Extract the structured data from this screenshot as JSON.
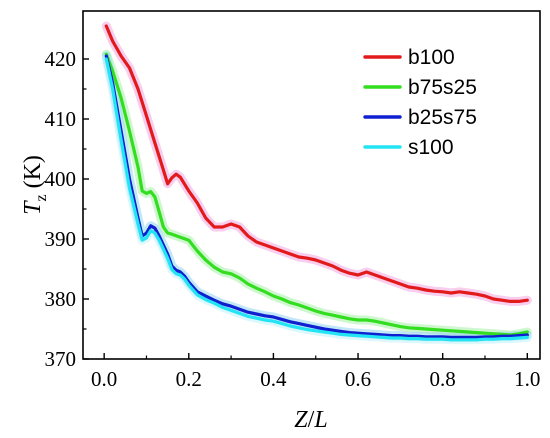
{
  "chart_data": {
    "type": "line",
    "xlabel": {
      "main": "Z",
      "slash": "/",
      "sub": "L"
    },
    "ylabel": {
      "main": "T",
      "sub": "z",
      "unit": " (K)"
    },
    "xlim": [
      -0.05,
      1.03
    ],
    "ylim": [
      370,
      428
    ],
    "xticks": [
      0.0,
      0.2,
      0.4,
      0.6,
      0.8,
      1.0
    ],
    "xtick_labels": [
      "0.0",
      "0.2",
      "0.4",
      "0.6",
      "0.8",
      "1.0"
    ],
    "yticks": [
      370,
      380,
      390,
      400,
      410,
      420
    ],
    "ytick_labels": [
      "370",
      "380",
      "390",
      "400",
      "410",
      "420"
    ],
    "legend_position": "top-right",
    "series": [
      {
        "name": "b100",
        "color": "#e31a1c",
        "halo": "#f2a6e0",
        "x": [
          0.005,
          0.02,
          0.04,
          0.06,
          0.08,
          0.1,
          0.12,
          0.14,
          0.15,
          0.16,
          0.17,
          0.18,
          0.2,
          0.22,
          0.24,
          0.26,
          0.28,
          0.3,
          0.32,
          0.34,
          0.36,
          0.38,
          0.4,
          0.42,
          0.44,
          0.46,
          0.48,
          0.5,
          0.52,
          0.54,
          0.56,
          0.58,
          0.6,
          0.62,
          0.64,
          0.66,
          0.68,
          0.7,
          0.72,
          0.74,
          0.76,
          0.78,
          0.8,
          0.82,
          0.84,
          0.86,
          0.88,
          0.9,
          0.92,
          0.94,
          0.96,
          0.98,
          1.0
        ],
        "y": [
          425.5,
          423.0,
          420.5,
          418.5,
          415.0,
          410.5,
          406.0,
          401.5,
          399.2,
          400.2,
          400.8,
          400.3,
          398.0,
          396.0,
          393.5,
          392.0,
          392.0,
          392.5,
          392.0,
          390.5,
          389.5,
          389.0,
          388.5,
          388.0,
          387.5,
          387.0,
          386.8,
          386.5,
          386.0,
          385.5,
          384.8,
          384.3,
          384.0,
          384.5,
          384.0,
          383.5,
          383.0,
          382.5,
          382.0,
          381.8,
          381.5,
          381.3,
          381.2,
          381.0,
          381.2,
          381.0,
          380.8,
          380.5,
          380.0,
          379.8,
          379.6,
          379.6,
          379.8
        ]
      },
      {
        "name": "b75s25",
        "color": "#33dd1f",
        "halo": "#a8f0a8",
        "x": [
          0.005,
          0.02,
          0.04,
          0.06,
          0.08,
          0.09,
          0.1,
          0.11,
          0.12,
          0.13,
          0.14,
          0.15,
          0.16,
          0.18,
          0.2,
          0.22,
          0.24,
          0.26,
          0.28,
          0.3,
          0.32,
          0.34,
          0.36,
          0.38,
          0.4,
          0.42,
          0.44,
          0.46,
          0.48,
          0.5,
          0.52,
          0.54,
          0.56,
          0.58,
          0.6,
          0.62,
          0.64,
          0.66,
          0.68,
          0.7,
          0.72,
          0.74,
          0.76,
          0.78,
          0.8,
          0.82,
          0.84,
          0.86,
          0.88,
          0.9,
          0.92,
          0.94,
          0.96,
          0.98,
          1.0
        ],
        "y": [
          420.8,
          418.0,
          413.5,
          408.0,
          402.0,
          398.0,
          397.6,
          397.9,
          397.0,
          394.5,
          392.0,
          391.0,
          390.8,
          390.3,
          389.8,
          388.0,
          386.5,
          385.3,
          384.5,
          384.2,
          383.5,
          382.5,
          381.8,
          381.2,
          380.5,
          380.0,
          379.4,
          379.0,
          378.5,
          378.0,
          377.6,
          377.3,
          377.0,
          376.7,
          376.5,
          376.5,
          376.3,
          376.0,
          375.7,
          375.4,
          375.2,
          375.1,
          375.0,
          374.9,
          374.8,
          374.7,
          374.6,
          374.5,
          374.4,
          374.3,
          374.2,
          374.1,
          374.0,
          374.2,
          374.5
        ]
      },
      {
        "name": "b25s75",
        "color": "#1020d0",
        "halo": "#8fd4f2",
        "x": [
          0.005,
          0.02,
          0.04,
          0.06,
          0.08,
          0.09,
          0.1,
          0.11,
          0.12,
          0.13,
          0.14,
          0.15,
          0.16,
          0.17,
          0.18,
          0.19,
          0.2,
          0.22,
          0.24,
          0.26,
          0.28,
          0.3,
          0.32,
          0.34,
          0.36,
          0.38,
          0.4,
          0.42,
          0.44,
          0.46,
          0.48,
          0.5,
          0.52,
          0.54,
          0.56,
          0.58,
          0.6,
          0.62,
          0.64,
          0.66,
          0.68,
          0.7,
          0.72,
          0.74,
          0.76,
          0.78,
          0.8,
          0.82,
          0.84,
          0.86,
          0.88,
          0.9,
          0.92,
          0.94,
          0.96,
          0.98,
          1.0
        ],
        "y": [
          420.5,
          416.0,
          408.0,
          400.0,
          393.5,
          390.5,
          391.0,
          392.2,
          391.8,
          390.5,
          389.0,
          387.5,
          385.5,
          384.8,
          384.5,
          383.8,
          382.8,
          381.2,
          380.5,
          379.8,
          379.2,
          378.8,
          378.3,
          377.8,
          377.5,
          377.2,
          377.0,
          376.6,
          376.2,
          375.9,
          375.6,
          375.3,
          375.0,
          374.8,
          374.6,
          374.4,
          374.3,
          374.2,
          374.1,
          374.0,
          373.9,
          373.9,
          373.8,
          373.8,
          373.7,
          373.7,
          373.7,
          373.6,
          373.6,
          373.6,
          373.6,
          373.7,
          373.7,
          373.8,
          373.8,
          373.9,
          374.0
        ]
      },
      {
        "name": "s100",
        "color": "#22e4f4",
        "halo": "#bff3fb",
        "x": [
          0.005,
          0.02,
          0.04,
          0.06,
          0.08,
          0.09,
          0.1,
          0.11,
          0.12,
          0.13,
          0.14,
          0.15,
          0.16,
          0.17,
          0.18,
          0.19,
          0.2,
          0.22,
          0.24,
          0.26,
          0.28,
          0.3,
          0.32,
          0.34,
          0.36,
          0.38,
          0.4,
          0.42,
          0.44,
          0.46,
          0.48,
          0.5,
          0.52,
          0.54,
          0.56,
          0.58,
          0.6,
          0.62,
          0.64,
          0.66,
          0.68,
          0.7,
          0.72,
          0.74,
          0.76,
          0.78,
          0.8,
          0.82,
          0.84,
          0.86,
          0.88,
          0.9,
          0.92,
          0.94,
          0.96,
          0.98,
          1.0
        ],
        "y": [
          420.0,
          415.0,
          406.5,
          398.5,
          392.5,
          389.8,
          390.2,
          391.4,
          391.0,
          389.8,
          388.3,
          386.8,
          384.9,
          384.2,
          384.0,
          383.3,
          382.3,
          380.7,
          379.9,
          379.3,
          378.6,
          378.1,
          377.6,
          377.1,
          376.8,
          376.5,
          376.3,
          375.9,
          375.5,
          375.2,
          374.9,
          374.7,
          374.5,
          374.3,
          374.1,
          374.0,
          373.9,
          373.8,
          373.7,
          373.6,
          373.5,
          373.5,
          373.4,
          373.4,
          373.3,
          373.3,
          373.3,
          373.2,
          373.2,
          373.2,
          373.2,
          373.3,
          373.3,
          373.4,
          373.4,
          373.5,
          373.6
        ]
      }
    ]
  }
}
